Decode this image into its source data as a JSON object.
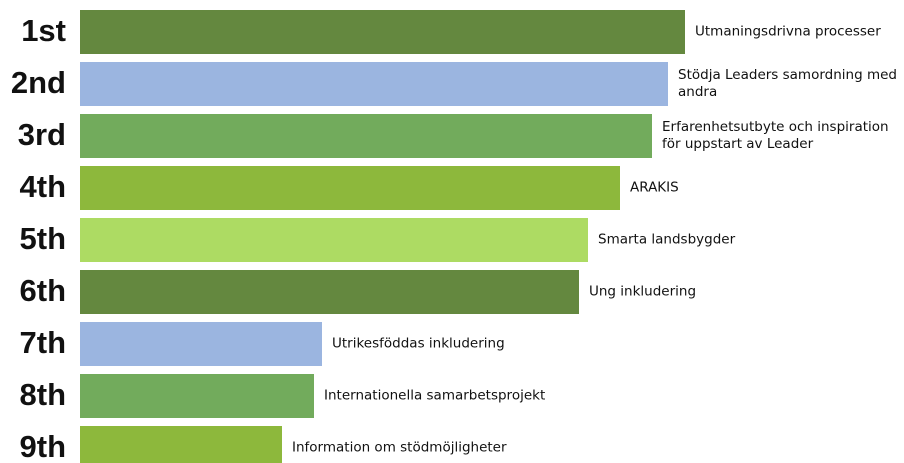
{
  "chart_data": {
    "type": "bar",
    "orientation": "horizontal",
    "ranks": [
      "1st",
      "2nd",
      "3rd",
      "4th",
      "5th",
      "6th",
      "7th",
      "8th",
      "9th"
    ],
    "categories": [
      "Utmaningsdrivna processer",
      "Stödja Leaders samordning med andra",
      "Erfarenhetsutbyte och inspiration för uppstart av Leader",
      "ARAKIS",
      "Smarta landsbygder",
      "Ung inkludering",
      "Utrikesföddas inkludering",
      "Internationella samarbetsprojekt",
      "Information om stödmöjligheter"
    ],
    "values": [
      605,
      588,
      572,
      540,
      508,
      499,
      242,
      234,
      202
    ],
    "colors": [
      "#64883f",
      "#9bb5e0",
      "#72ab5c",
      "#8db83c",
      "#addb63",
      "#64883f",
      "#9bb5e0",
      "#72ab5c",
      "#8db83c"
    ]
  }
}
